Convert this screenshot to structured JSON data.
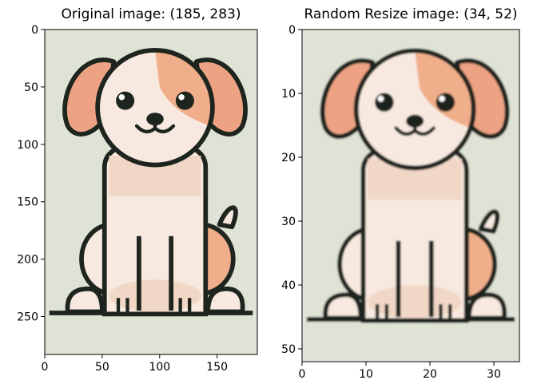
{
  "chart_data": [
    {
      "type": "image",
      "title": "Original image: (185, 283)",
      "image": "cartoon-puppy",
      "size": [
        185,
        283
      ],
      "xlim": [
        0,
        185
      ],
      "ylim": [
        283,
        0
      ],
      "xticks": [
        0,
        50,
        100,
        150
      ],
      "yticks": [
        0,
        50,
        100,
        150,
        200,
        250
      ],
      "grid": false
    },
    {
      "type": "image",
      "title": "Random Resize image: (34, 52)",
      "image": "cartoon-puppy-pixelated",
      "size": [
        34,
        52
      ],
      "xlim": [
        0,
        34
      ],
      "ylim": [
        52,
        0
      ],
      "xticks": [
        0,
        10,
        20,
        30
      ],
      "yticks": [
        0,
        10,
        20,
        30,
        40,
        50
      ],
      "grid": false
    }
  ],
  "colors": {
    "background": "#dfe3d6",
    "outline": "#1e241e",
    "ear": "#eda383",
    "patch": "#f0ae8a",
    "body": "#f7e9df",
    "shade": "#f1d7c6"
  }
}
